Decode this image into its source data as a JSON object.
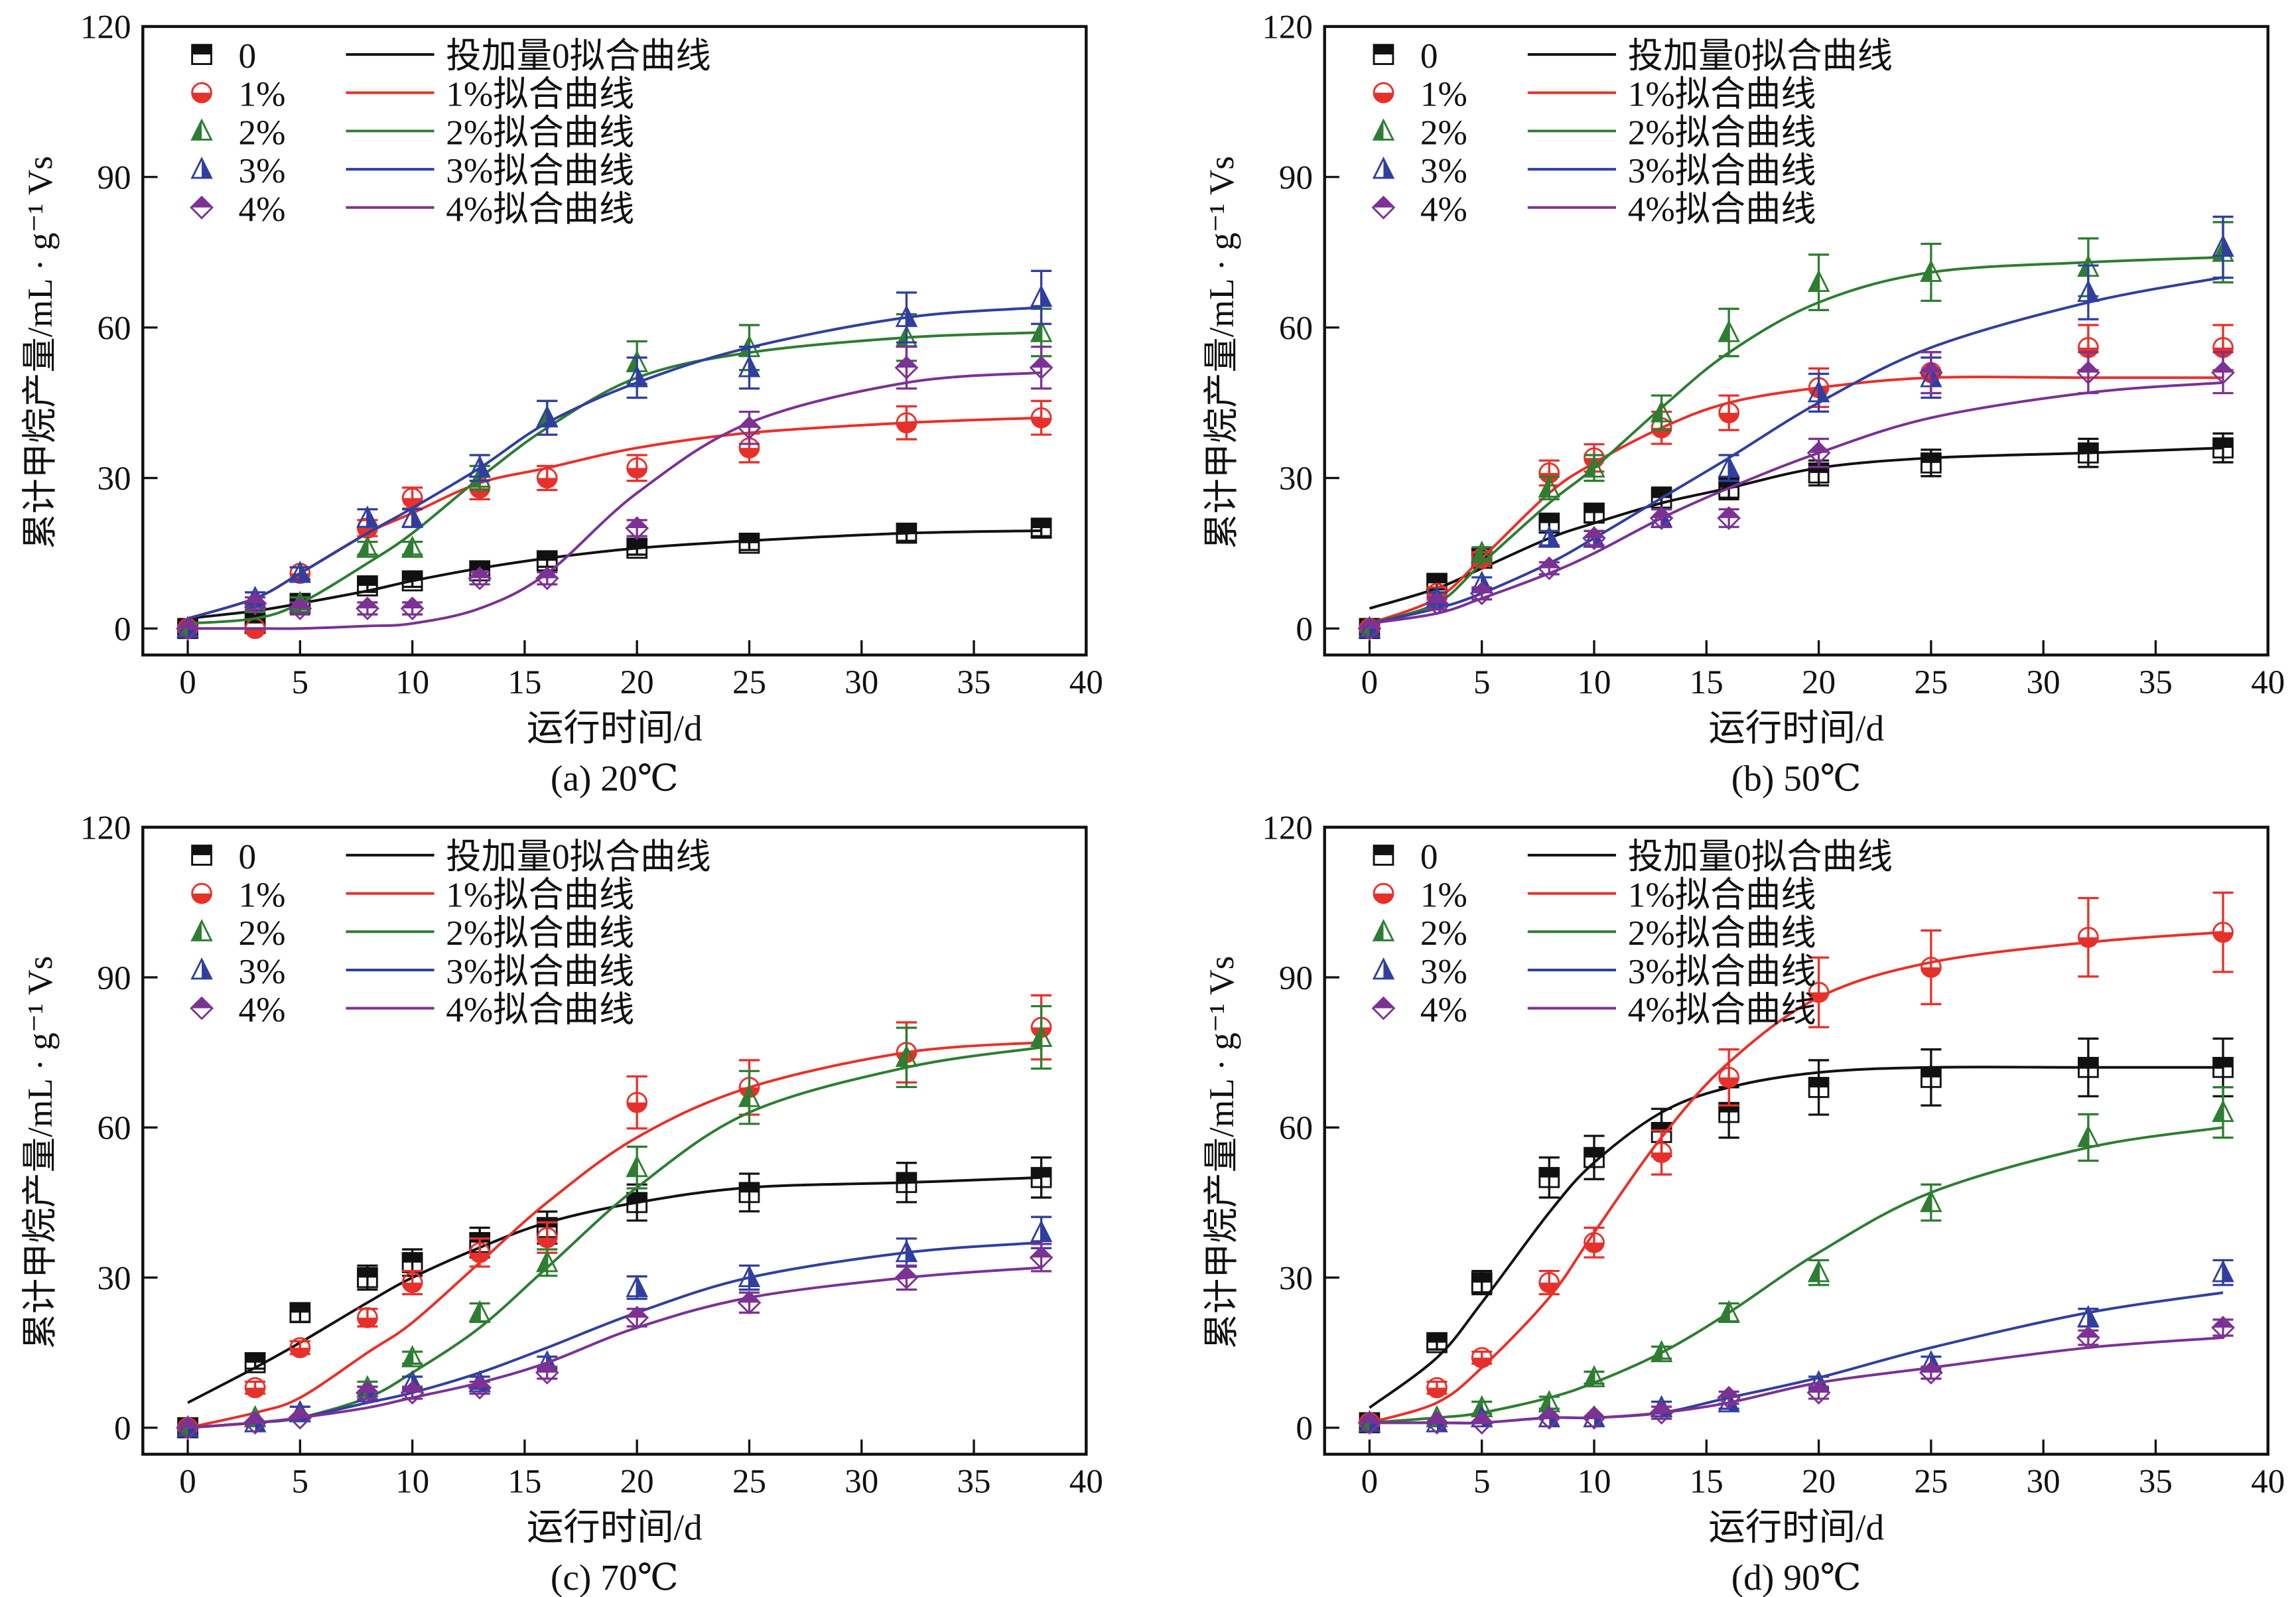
{
  "chart_data": [
    {
      "type": "scatter",
      "caption": "(a) 20℃",
      "xlabel": "运行时间/d",
      "ylabel": "累计甲烷产量/mL · g⁻¹ Vs",
      "xlim": [
        -2,
        40
      ],
      "ylim": [
        -5,
        120
      ],
      "xticks": [
        0,
        5,
        10,
        15,
        20,
        25,
        30,
        35,
        40
      ],
      "yticks": [
        0,
        30,
        60,
        90,
        120
      ],
      "legend_position": "top-left",
      "x": [
        0,
        3,
        5,
        8,
        10,
        13,
        16,
        20,
        25,
        32,
        38
      ],
      "series": [
        {
          "name": "0",
          "fit_name": "投加量0拟合曲线",
          "color": "#111111",
          "marker": "square",
          "values": [
            0,
            1,
            5,
            8.5,
            9.5,
            11.5,
            13.5,
            16,
            17,
            19,
            20
          ],
          "fit": [
            2,
            3.5,
            5,
            7.5,
            9.5,
            12,
            14,
            16,
            17.5,
            19,
            19.5
          ]
        },
        {
          "name": "1%",
          "fit_name": "1%拟合曲线",
          "color": "#e8302a",
          "marker": "circle",
          "values": [
            0,
            0,
            11,
            20,
            26,
            28,
            30,
            32,
            36,
            41,
            42
          ],
          "fit": [
            2,
            6,
            11,
            19,
            23,
            29,
            32,
            36,
            39,
            41,
            42
          ]
        },
        {
          "name": "2%",
          "fit_name": "2%拟合曲线",
          "color": "#2e7d32",
          "marker": "triangle-left",
          "values": [
            0,
            5,
            5,
            16,
            16,
            30,
            42,
            53,
            56,
            58,
            59
          ],
          "fit": [
            1,
            2,
            5,
            13,
            19,
            30,
            40,
            50,
            55,
            58,
            59
          ]
        },
        {
          "name": "3%",
          "fit_name": "3%拟合曲线",
          "color": "#303f9f",
          "marker": "triangle-right",
          "values": [
            0,
            6,
            11,
            22,
            22,
            32,
            42,
            50,
            52,
            62,
            66
          ],
          "fit": [
            2,
            6,
            11,
            19,
            24,
            32,
            41,
            49,
            56,
            62,
            64
          ]
        },
        {
          "name": "4%",
          "fit_name": "4%拟合曲线",
          "color": "#7b3294",
          "marker": "diamond",
          "values": [
            0,
            5,
            4,
            4,
            4,
            10,
            10,
            20,
            40,
            52,
            52
          ],
          "fit": [
            0,
            0,
            0,
            0.5,
            1,
            4,
            11,
            27,
            41,
            49,
            51
          ]
        }
      ]
    },
    {
      "type": "scatter",
      "caption": "(b) 50℃",
      "xlabel": "运行时间/d",
      "ylabel": "累计甲烷产量/mL · g⁻¹ Vs",
      "xlim": [
        -2,
        40
      ],
      "ylim": [
        -5,
        120
      ],
      "xticks": [
        0,
        5,
        10,
        15,
        20,
        25,
        30,
        35,
        40
      ],
      "yticks": [
        0,
        30,
        60,
        90,
        120
      ],
      "legend_position": "top-left",
      "x": [
        0,
        3,
        5,
        8,
        10,
        13,
        16,
        20,
        25,
        32,
        38
      ],
      "series": [
        {
          "name": "0",
          "fit_name": "投加量0拟合曲线",
          "color": "#111111",
          "marker": "square",
          "values": [
            0,
            9,
            14,
            21,
            23,
            26,
            28,
            31,
            33,
            35,
            36
          ],
          "fit": [
            4,
            8,
            12,
            18,
            21,
            25,
            28,
            32,
            34,
            35,
            36
          ]
        },
        {
          "name": "1%",
          "fit_name": "1%拟合曲线",
          "color": "#e8302a",
          "marker": "circle",
          "values": [
            0,
            7,
            14,
            31,
            34,
            40,
            43,
            48,
            51,
            56,
            56
          ],
          "fit": [
            1,
            6,
            14,
            27,
            33,
            40,
            45,
            48,
            50,
            50,
            50
          ]
        },
        {
          "name": "2%",
          "fit_name": "2%拟合曲线",
          "color": "#2e7d32",
          "marker": "triangle-left",
          "values": [
            0,
            6,
            15,
            28,
            32,
            43,
            59,
            69,
            71,
            72,
            75
          ],
          "fit": [
            1,
            5,
            13,
            25,
            32,
            44,
            55,
            65,
            71,
            73,
            74
          ]
        },
        {
          "name": "3%",
          "fit_name": "3%拟合曲线",
          "color": "#303f9f",
          "marker": "triangle-right",
          "values": [
            0,
            6,
            9,
            18,
            18,
            22,
            32,
            47,
            50,
            67,
            76
          ],
          "fit": [
            1,
            4,
            7,
            13,
            18,
            26,
            34,
            45,
            56,
            65,
            70
          ]
        },
        {
          "name": "4%",
          "fit_name": "4%拟合曲线",
          "color": "#7b3294",
          "marker": "diamond",
          "values": [
            0,
            5,
            7,
            12,
            18,
            22,
            22,
            35,
            51,
            51,
            51
          ],
          "fit": [
            1,
            3,
            6,
            11,
            15,
            22,
            28,
            35,
            42,
            47,
            49
          ]
        }
      ]
    },
    {
      "type": "scatter",
      "caption": "(c) 70℃",
      "xlabel": "运行时间/d",
      "ylabel": "累计甲烷产量/mL · g⁻¹ Vs",
      "xlim": [
        -2,
        40
      ],
      "ylim": [
        -5,
        120
      ],
      "xticks": [
        0,
        5,
        10,
        15,
        20,
        25,
        30,
        35,
        40
      ],
      "yticks": [
        0,
        30,
        60,
        90,
        120
      ],
      "legend_position": "top-left",
      "x": [
        0,
        3,
        5,
        8,
        10,
        13,
        16,
        20,
        25,
        32,
        38
      ],
      "series": [
        {
          "name": "0",
          "fit_name": "投加量0拟合曲线",
          "color": "#111111",
          "marker": "square",
          "values": [
            0,
            13,
            23,
            30,
            33,
            37,
            40,
            45,
            47,
            49,
            50
          ],
          "fit": [
            5,
            12,
            17,
            25,
            30,
            36,
            41,
            45,
            48,
            49,
            50
          ]
        },
        {
          "name": "1%",
          "fit_name": "1%拟合曲线",
          "color": "#e8302a",
          "marker": "circle",
          "values": [
            0,
            8,
            16,
            22,
            29,
            35,
            38,
            65,
            68,
            75,
            80
          ],
          "fit": [
            0,
            3,
            6,
            15,
            21,
            33,
            45,
            58,
            68,
            75,
            77
          ]
        },
        {
          "name": "2%",
          "fit_name": "2%拟合曲线",
          "color": "#2e7d32",
          "marker": "triangle-left",
          "values": [
            0,
            2,
            3,
            8,
            14,
            23,
            33,
            52,
            66,
            74,
            78
          ],
          "fit": [
            0,
            1,
            2,
            6,
            11,
            20,
            32,
            48,
            63,
            72,
            76
          ]
        },
        {
          "name": "3%",
          "fit_name": "3%拟合曲线",
          "color": "#303f9f",
          "marker": "triangle-right",
          "values": [
            0,
            1,
            3,
            7,
            9,
            9,
            13,
            28,
            30,
            35,
            39
          ],
          "fit": [
            0,
            1,
            2,
            5,
            7,
            11,
            16,
            23,
            30,
            35,
            37
          ]
        },
        {
          "name": "4%",
          "fit_name": "4%拟合曲线",
          "color": "#7b3294",
          "marker": "diamond",
          "values": [
            0,
            1,
            2,
            7,
            7,
            8,
            11,
            22,
            25,
            30,
            34
          ],
          "fit": [
            0,
            1,
            2,
            4,
            6,
            9,
            13,
            20,
            26,
            30,
            32
          ]
        }
      ]
    },
    {
      "type": "scatter",
      "caption": "(d) 90℃",
      "xlabel": "运行时间/d",
      "ylabel": "累计甲烷产量/mL · g⁻¹ Vs",
      "xlim": [
        -2,
        40
      ],
      "ylim": [
        -5,
        120
      ],
      "xticks": [
        0,
        5,
        10,
        15,
        20,
        25,
        30,
        35,
        40
      ],
      "yticks": [
        0,
        30,
        60,
        90,
        120
      ],
      "legend_position": "top-left",
      "x": [
        0,
        3,
        5,
        8,
        10,
        13,
        16,
        20,
        25,
        32,
        38
      ],
      "series": [
        {
          "name": "0",
          "fit_name": "投加量0拟合曲线",
          "color": "#111111",
          "marker": "square",
          "values": [
            1,
            17,
            29,
            50,
            54,
            59,
            63,
            68,
            70,
            72,
            72
          ],
          "fit": [
            4,
            14,
            25,
            43,
            53,
            63,
            68,
            71,
            72,
            72,
            72
          ]
        },
        {
          "name": "1%",
          "fit_name": "1%拟合曲线",
          "color": "#e8302a",
          "marker": "circle",
          "values": [
            1,
            8,
            14,
            29,
            37,
            55,
            70,
            87,
            92,
            98,
            99
          ],
          "fit": [
            1,
            5,
            12,
            26,
            39,
            58,
            73,
            86,
            93,
            97,
            99
          ]
        },
        {
          "name": "2%",
          "fit_name": "2%拟合曲线",
          "color": "#2e7d32",
          "marker": "triangle-left",
          "values": [
            1,
            2,
            4,
            5,
            10,
            15,
            23,
            31,
            45,
            58,
            63
          ],
          "fit": [
            1,
            2,
            3,
            6,
            9,
            15,
            23,
            35,
            47,
            56,
            60
          ]
        },
        {
          "name": "3%",
          "fit_name": "3%拟合曲线",
          "color": "#303f9f",
          "marker": "triangle-right",
          "values": [
            1,
            1,
            2,
            2,
            2,
            4,
            5,
            9,
            13,
            22,
            31
          ],
          "fit": [
            1,
            1,
            1,
            2,
            2,
            3,
            6,
            10,
            16,
            23,
            27
          ]
        },
        {
          "name": "4%",
          "fit_name": "4%拟合曲线",
          "color": "#7b3294",
          "marker": "diamond",
          "values": [
            1,
            1,
            1,
            2,
            2,
            3,
            6,
            7,
            11,
            18,
            20
          ],
          "fit": [
            1,
            1,
            1,
            2,
            2,
            3,
            5,
            9,
            12,
            16,
            18
          ]
        }
      ]
    }
  ]
}
